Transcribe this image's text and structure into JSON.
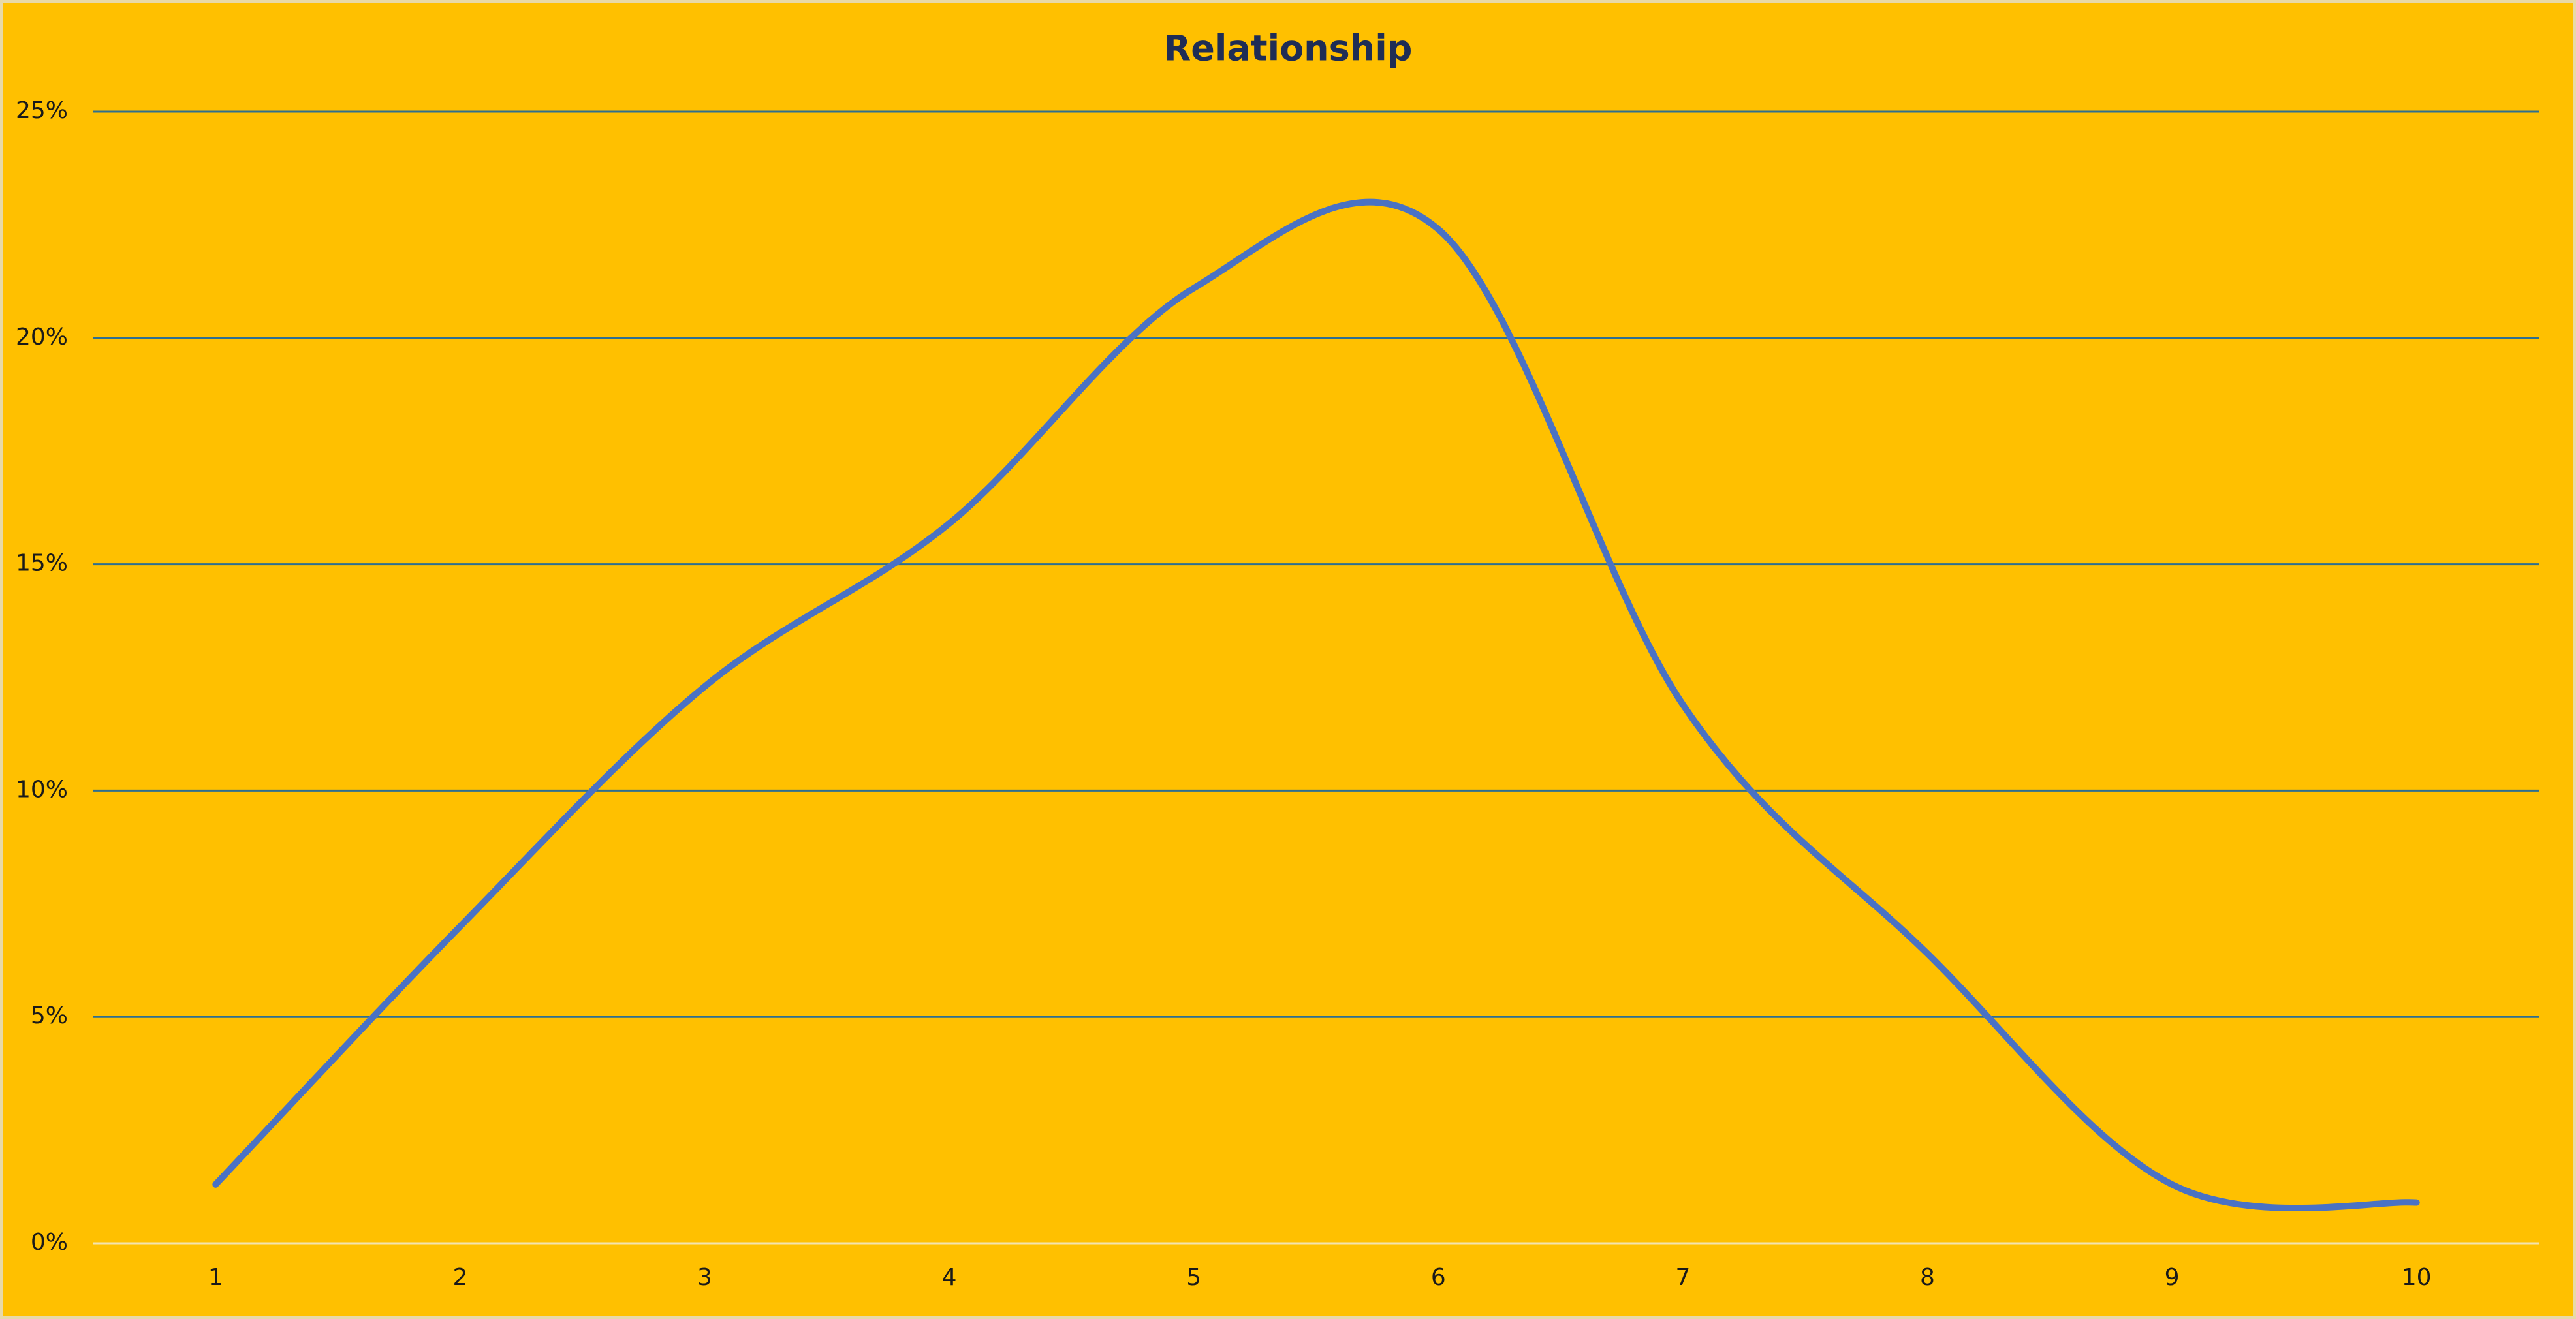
{
  "chart_data": {
    "type": "line",
    "title": "Relationship",
    "categories": [
      "1",
      "2",
      "3",
      "4",
      "5",
      "6",
      "7",
      "8",
      "9",
      "10"
    ],
    "values": [
      1.3,
      7.0,
      12.3,
      15.9,
      21.1,
      22.4,
      11.9,
      6.4,
      1.3,
      0.9
    ],
    "color": "#4a72c4",
    "smooth": true,
    "ylim": [
      0,
      25
    ],
    "yticks": [
      {
        "value": 0,
        "label": "0%"
      },
      {
        "value": 5,
        "label": "5%"
      },
      {
        "value": 10,
        "label": "10%"
      },
      {
        "value": 15,
        "label": "15%"
      },
      {
        "value": 20,
        "label": "20%"
      },
      {
        "value": 25,
        "label": "25%"
      }
    ],
    "grid": true
  }
}
